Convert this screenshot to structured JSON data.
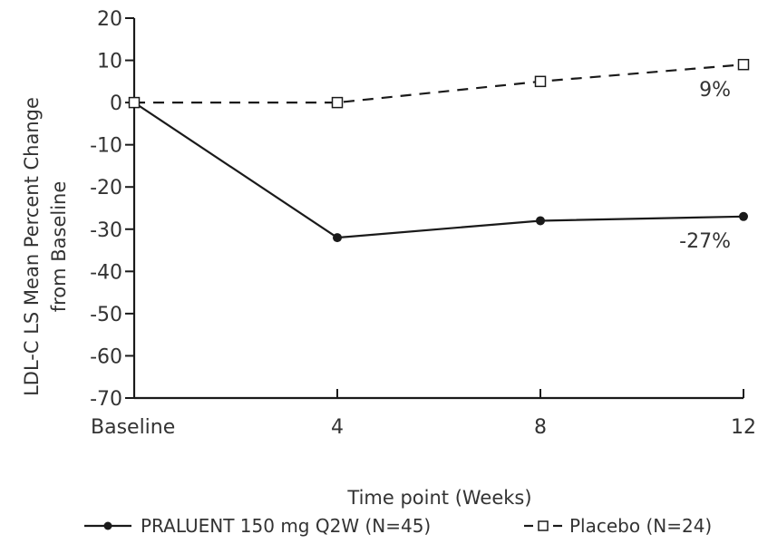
{
  "chart_data": {
    "type": "line",
    "x_categories": [
      "Baseline",
      "4",
      "8",
      "12"
    ],
    "x_values_weeks": [
      0,
      4,
      8,
      12
    ],
    "ylabel_lines": [
      "LDL-C LS Mean Percent Change",
      "from Baseline"
    ],
    "xlabel": "Time point (Weeks)",
    "ylim": [
      -70,
      20
    ],
    "yticks": [
      20,
      10,
      0,
      -10,
      -20,
      -30,
      -40,
      -50,
      -60,
      -70
    ],
    "grid": false,
    "legend_position": "bottom",
    "series": [
      {
        "name": "PRALUENT 150 mg Q2W (N=45)",
        "values": [
          0,
          -32,
          -28,
          -27
        ],
        "line_style": "solid",
        "marker": "filled-circle",
        "color": "#1a1a1a",
        "end_label": "-27%"
      },
      {
        "name": "Placebo (N=24)",
        "values": [
          0,
          0,
          5,
          9
        ],
        "line_style": "dashed",
        "marker": "open-square",
        "color": "#1a1a1a",
        "end_label": "9%"
      }
    ]
  }
}
